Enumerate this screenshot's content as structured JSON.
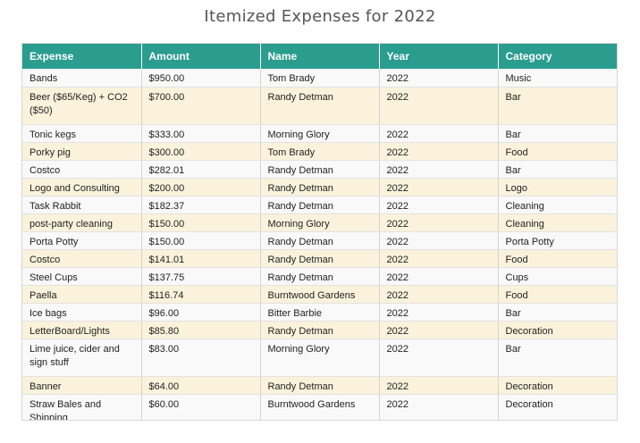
{
  "title": "Itemized Expenses for 2022",
  "colors": {
    "header_bg": "#2a9d8f",
    "row_alt": "#fbf2dc",
    "row": "#f9f9f9"
  },
  "columns": [
    "Expense",
    "Amount",
    "Name",
    "Year",
    "Category"
  ],
  "rows": [
    [
      "Bands",
      "$950.00",
      "Tom Brady",
      "2022",
      "Music"
    ],
    [
      "Beer ($65/Keg) + CO2 ($50)",
      "$700.00",
      "Randy Detman",
      "2022",
      "Bar"
    ],
    [
      "Tonic kegs",
      "$333.00",
      "Morning Glory",
      "2022",
      "Bar"
    ],
    [
      "Porky pig",
      "$300.00",
      "Tom Brady",
      "2022",
      "Food"
    ],
    [
      "Costco",
      "$282.01",
      "Randy Detman",
      "2022",
      "Bar"
    ],
    [
      "Logo and Consulting",
      "$200.00",
      "Randy Detman",
      "2022",
      "Logo"
    ],
    [
      "Task Rabbit",
      "$182.37",
      "Randy Detman",
      "2022",
      "Cleaning"
    ],
    [
      "post-party cleaning",
      "$150.00",
      "Morning Glory",
      "2022",
      "Cleaning"
    ],
    [
      "Porta Potty",
      "$150.00",
      "Randy Detman",
      "2022",
      "Porta Potty"
    ],
    [
      "Costco",
      "$141.01",
      "Randy Detman",
      "2022",
      "Food"
    ],
    [
      "Steel Cups",
      "$137.75",
      "Randy Detman",
      "2022",
      "Cups"
    ],
    [
      "Paella",
      "$116.74",
      "Burntwood Gardens",
      "2022",
      "Food"
    ],
    [
      "Ice bags",
      "$96.00",
      "Bitter Barbie",
      "2022",
      "Bar"
    ],
    [
      "LetterBoard/Lights",
      "$85.80",
      "Randy Detman",
      "2022",
      "Decoration"
    ],
    [
      "Lime juice, cider and sign stuff",
      "$83.00",
      "Morning Glory",
      "2022",
      "Bar"
    ],
    [
      "Banner",
      "$64.00",
      "Randy Detman",
      "2022",
      "Decoration"
    ],
    [
      "Straw Bales and Shipping",
      "$60.00",
      "Burntwood Gardens",
      "2022",
      "Decoration"
    ]
  ]
}
